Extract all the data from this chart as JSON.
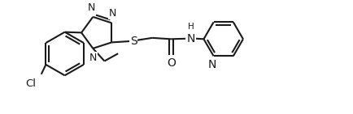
{
  "background": "#ffffff",
  "line_color": "#1a1a1a",
  "line_width": 1.5,
  "font_size": 9.0,
  "fig_width": 4.35,
  "fig_height": 1.41,
  "xlim": [
    0,
    10.5
  ],
  "ylim": [
    -0.5,
    3.2
  ]
}
